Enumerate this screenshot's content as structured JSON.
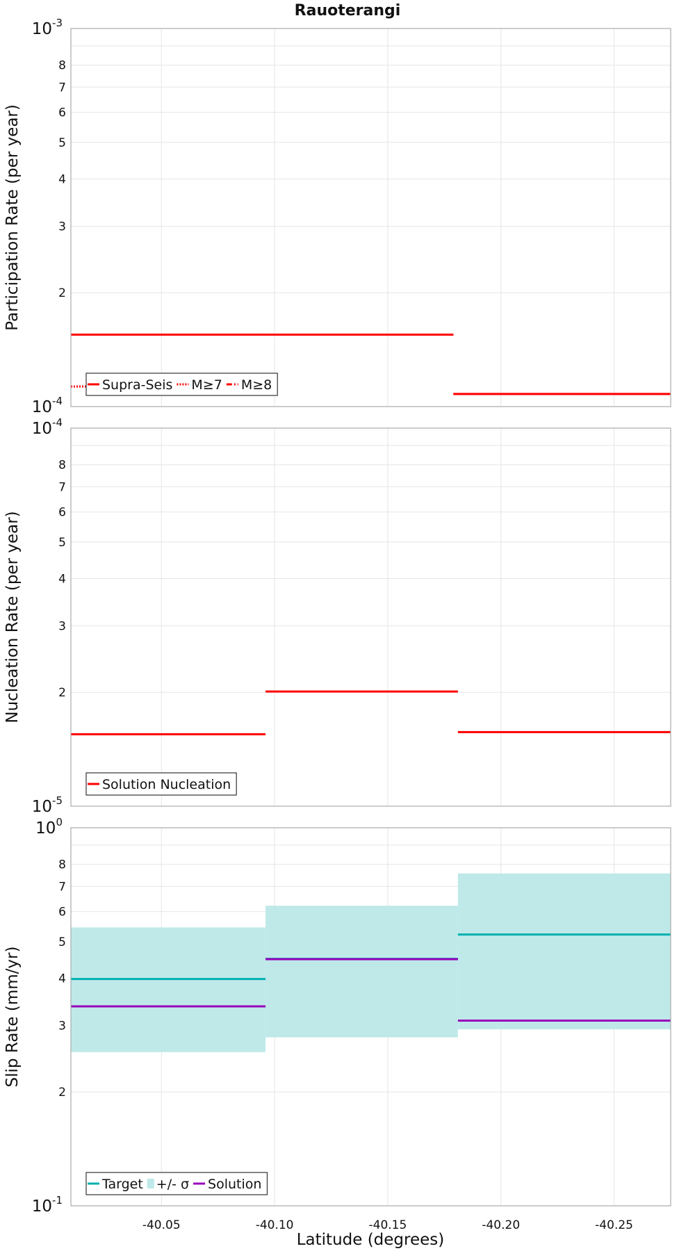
{
  "title": "Rauoterangi",
  "xlabel": "Latitude (degrees)",
  "x_ticks": [
    "-40.05",
    "-40.10",
    "-40.15",
    "-40.20",
    "-40.25"
  ],
  "colors": {
    "red": "#ff0000",
    "teal": "#00b0b0",
    "teal_band": "#bfe9e9",
    "purple": "#9900bb",
    "grid": "#e6e6e6",
    "frame": "#aaaaaa"
  },
  "chart_data": [
    {
      "type": "line",
      "ylabel": "Participation Rate (per year)",
      "yscale": "log",
      "xlim": [
        -40.01,
        -40.275
      ],
      "ylim": [
        0.0001,
        0.001
      ],
      "y_tick_top": {
        "base": "10",
        "exp": "-3"
      },
      "y_tick_bottom": {
        "base": "10",
        "exp": "-4"
      },
      "y_minor_ticks": [
        {
          "value": 0.0002,
          "label": "2"
        },
        {
          "value": 0.0003,
          "label": "3"
        },
        {
          "value": 0.0004,
          "label": "4"
        },
        {
          "value": 0.0005,
          "label": "5"
        },
        {
          "value": 0.0006,
          "label": "6"
        },
        {
          "value": 0.0007,
          "label": "7"
        },
        {
          "value": 0.0008,
          "label": "8"
        }
      ],
      "series": [
        {
          "name": "Supra-Seis",
          "style": "solid",
          "color": "#ff0000",
          "segments": [
            {
              "x0": -40.01,
              "x1": -40.095,
              "y": 0.000155
            },
            {
              "x0": -40.095,
              "x1": -40.179,
              "y": 0.000155
            },
            {
              "x0": -40.179,
              "x1": -40.275,
              "y": 0.000108
            }
          ]
        },
        {
          "name": "M≥7",
          "style": "dotted",
          "color": "#ff0000",
          "segments": [
            {
              "x0": -40.01,
              "x1": -40.095,
              "y": 0.000113
            },
            {
              "x0": -40.095,
              "x1": -40.179,
              "y": 0.000155
            },
            {
              "x0": -40.179,
              "x1": -40.275,
              "y": 0.000108
            }
          ]
        },
        {
          "name": "M≥8",
          "style": "dashdot",
          "color": "#ff0000",
          "segments": []
        }
      ],
      "legend_position": "bottom-left"
    },
    {
      "type": "line",
      "ylabel": "Nucleation Rate (per year)",
      "yscale": "log",
      "xlim": [
        -40.01,
        -40.275
      ],
      "ylim": [
        1e-05,
        0.0001
      ],
      "y_tick_top": {
        "base": "10",
        "exp": "-4"
      },
      "y_tick_bottom": {
        "base": "10",
        "exp": "-5"
      },
      "y_minor_ticks": [
        {
          "value": 2e-05,
          "label": "2"
        },
        {
          "value": 3e-05,
          "label": "3"
        },
        {
          "value": 4e-05,
          "label": "4"
        },
        {
          "value": 5e-05,
          "label": "5"
        },
        {
          "value": 6e-05,
          "label": "6"
        },
        {
          "value": 7e-05,
          "label": "7"
        },
        {
          "value": 8e-05,
          "label": "8"
        }
      ],
      "series": [
        {
          "name": "Solution Nucleation",
          "style": "solid",
          "color": "#ff0000",
          "segments": [
            {
              "x0": -40.01,
              "x1": -40.096,
              "y": 1.55e-05
            },
            {
              "x0": -40.096,
              "x1": -40.181,
              "y": 2.01e-05
            },
            {
              "x0": -40.181,
              "x1": -40.275,
              "y": 1.57e-05
            }
          ]
        }
      ],
      "legend_position": "bottom-left"
    },
    {
      "type": "line",
      "ylabel": "Slip Rate (mm/yr)",
      "yscale": "log",
      "xlim": [
        -40.01,
        -40.275
      ],
      "ylim": [
        0.1,
        1
      ],
      "y_tick_top": {
        "base": "10",
        "exp": "0"
      },
      "y_tick_bottom": {
        "base": "10",
        "exp": "-1"
      },
      "y_minor_ticks": [
        {
          "value": 0.2,
          "label": "2"
        },
        {
          "value": 0.3,
          "label": "3"
        },
        {
          "value": 0.4,
          "label": "4"
        },
        {
          "value": 0.5,
          "label": "5"
        },
        {
          "value": 0.6,
          "label": "6"
        },
        {
          "value": 0.7,
          "label": "7"
        },
        {
          "value": 0.8,
          "label": "8"
        }
      ],
      "band": {
        "name": "+/- σ",
        "color": "#bfe9e9",
        "segments": [
          {
            "x0": -40.01,
            "x1": -40.096,
            "low": 0.255,
            "high": 0.545
          },
          {
            "x0": -40.096,
            "x1": -40.181,
            "low": 0.279,
            "high": 0.622
          },
          {
            "x0": -40.181,
            "x1": -40.275,
            "low": 0.293,
            "high": 0.757
          }
        ]
      },
      "series": [
        {
          "name": "Target",
          "style": "solid",
          "color": "#00b0b0",
          "segments": [
            {
              "x0": -40.01,
              "x1": -40.096,
              "y": 0.398
            },
            {
              "x0": -40.096,
              "x1": -40.181,
              "y": 0.45
            },
            {
              "x0": -40.181,
              "x1": -40.275,
              "y": 0.522
            }
          ]
        },
        {
          "name": "Solution",
          "style": "solid",
          "color": "#9900bb",
          "segments": [
            {
              "x0": -40.01,
              "x1": -40.096,
              "y": 0.337
            },
            {
              "x0": -40.096,
              "x1": -40.181,
              "y": 0.449
            },
            {
              "x0": -40.181,
              "x1": -40.275,
              "y": 0.309
            }
          ]
        }
      ],
      "legend_position": "bottom-left"
    }
  ]
}
